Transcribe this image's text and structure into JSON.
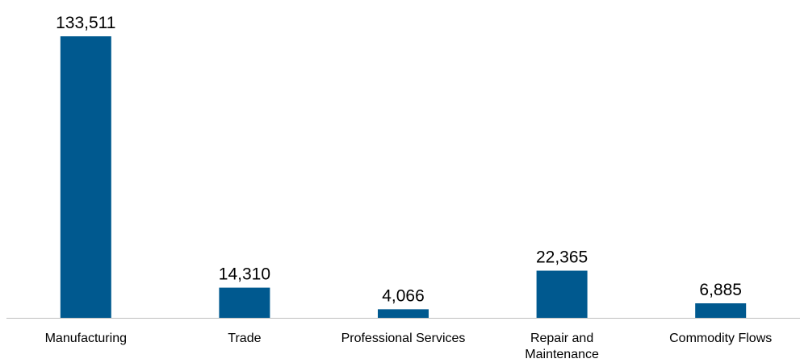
{
  "chart_data": {
    "type": "bar",
    "categories": [
      "Manufacturing",
      "Trade",
      "Professional Services",
      "Repair and Maintenance",
      "Commodity Flows"
    ],
    "category_label_lines": [
      [
        "Manufacturing"
      ],
      [
        "Trade"
      ],
      [
        "Professional Services"
      ],
      [
        "Repair and",
        "Maintenance"
      ],
      [
        "Commodity Flows"
      ]
    ],
    "values": [
      133511,
      14310,
      4066,
      22365,
      6885
    ],
    "value_labels": [
      "133,511",
      "14,310",
      "4,066",
      "22,365",
      "6,885"
    ],
    "title": "",
    "xlabel": "",
    "ylabel": "",
    "ylim": [
      0,
      133511
    ],
    "grid": false,
    "legend": "none",
    "bar_color": "#00598F",
    "axis_color": "#BFBFBF"
  }
}
